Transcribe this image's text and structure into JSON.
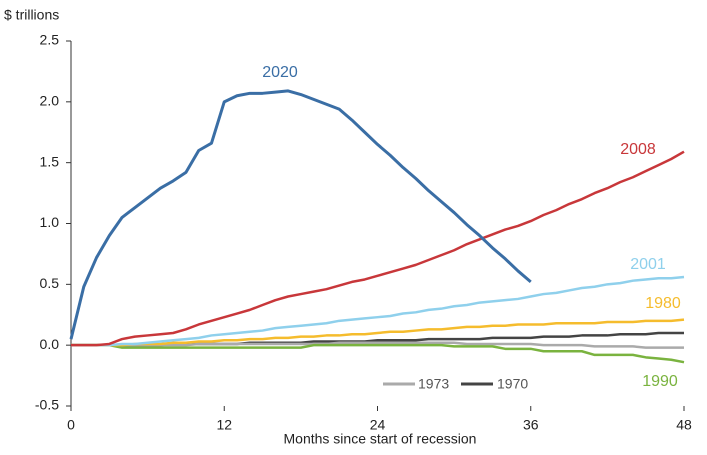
{
  "chart_data": {
    "type": "line",
    "y_label": "$ trillions",
    "x_label": "Months since start of recession",
    "x": [
      0,
      1,
      2,
      3,
      4,
      5,
      6,
      7,
      8,
      9,
      10,
      11,
      12,
      13,
      14,
      15,
      16,
      17,
      18,
      19,
      20,
      21,
      22,
      23,
      24,
      25,
      26,
      27,
      28,
      29,
      30,
      31,
      32,
      33,
      34,
      35,
      36,
      37,
      38,
      39,
      40,
      41,
      42,
      43,
      44,
      45,
      46,
      47,
      48
    ],
    "xlim": [
      0,
      48
    ],
    "xticks": [
      0,
      12,
      24,
      36,
      48
    ],
    "ylim": [
      -0.5,
      2.5
    ],
    "yticks": [
      -0.5,
      {
        "value": 0,
        "label": "0.0"
      },
      0.5,
      {
        "value": 1,
        "label": "1.0"
      },
      1.5,
      {
        "value": 2,
        "label": "2.0"
      },
      2.5
    ],
    "series": [
      {
        "name": "2020",
        "color": "#3a6ea5",
        "values": [
          0.05,
          0.48,
          0.72,
          0.9,
          1.05,
          1.13,
          1.21,
          1.29,
          1.35,
          1.42,
          1.6,
          1.66,
          2.0,
          2.05,
          2.07,
          2.07,
          2.08,
          2.09,
          2.06,
          2.02,
          1.98,
          1.94,
          1.85,
          1.75,
          1.65,
          1.56,
          1.46,
          1.37,
          1.27,
          1.18,
          1.09,
          0.99,
          0.9,
          0.8,
          0.71,
          0.61,
          0.52,
          null,
          null,
          null,
          null,
          null,
          null,
          null,
          null,
          null,
          null,
          null,
          null
        ]
      },
      {
        "name": "2008",
        "color": "#c8373a",
        "values": [
          0,
          0,
          0,
          0.01,
          0.05,
          0.07,
          0.08,
          0.09,
          0.1,
          0.13,
          0.17,
          0.2,
          0.23,
          0.26,
          0.29,
          0.33,
          0.37,
          0.4,
          0.42,
          0.44,
          0.46,
          0.49,
          0.52,
          0.54,
          0.57,
          0.6,
          0.63,
          0.66,
          0.7,
          0.74,
          0.78,
          0.83,
          0.87,
          0.91,
          0.95,
          0.98,
          1.02,
          1.07,
          1.11,
          1.16,
          1.2,
          1.25,
          1.29,
          1.34,
          1.38,
          1.43,
          1.48,
          1.53,
          1.59
        ]
      },
      {
        "name": "2001",
        "color": "#8fd0ec",
        "values": [
          0,
          0,
          0,
          0,
          0.01,
          0.01,
          0.02,
          0.03,
          0.04,
          0.05,
          0.06,
          0.08,
          0.09,
          0.1,
          0.11,
          0.12,
          0.14,
          0.15,
          0.16,
          0.17,
          0.18,
          0.2,
          0.21,
          0.22,
          0.23,
          0.24,
          0.26,
          0.27,
          0.29,
          0.3,
          0.32,
          0.33,
          0.35,
          0.36,
          0.37,
          0.38,
          0.4,
          0.42,
          0.43,
          0.45,
          0.47,
          0.48,
          0.5,
          0.51,
          0.53,
          0.54,
          0.55,
          0.55,
          0.56
        ]
      },
      {
        "name": "1980",
        "color": "#f5bc2d",
        "values": [
          0,
          0,
          0,
          0,
          0,
          0.01,
          0.01,
          0.01,
          0.02,
          0.02,
          0.03,
          0.03,
          0.04,
          0.04,
          0.05,
          0.05,
          0.06,
          0.06,
          0.07,
          0.07,
          0.08,
          0.08,
          0.09,
          0.09,
          0.1,
          0.11,
          0.11,
          0.12,
          0.13,
          0.13,
          0.14,
          0.15,
          0.15,
          0.16,
          0.16,
          0.17,
          0.17,
          0.17,
          0.18,
          0.18,
          0.18,
          0.18,
          0.19,
          0.19,
          0.19,
          0.2,
          0.2,
          0.2,
          0.21
        ]
      },
      {
        "name": "1990",
        "color": "#7ab33f",
        "values": [
          0,
          0,
          0,
          0,
          -0.02,
          -0.02,
          -0.02,
          -0.02,
          -0.02,
          -0.02,
          -0.02,
          -0.02,
          -0.02,
          -0.02,
          -0.02,
          -0.02,
          -0.02,
          -0.02,
          -0.02,
          0,
          0,
          0,
          0,
          0,
          0,
          0,
          0,
          0,
          0,
          0,
          -0.01,
          -0.01,
          -0.01,
          -0.01,
          -0.03,
          -0.03,
          -0.03,
          -0.05,
          -0.05,
          -0.05,
          -0.05,
          -0.08,
          -0.08,
          -0.08,
          -0.08,
          -0.1,
          -0.11,
          -0.12,
          -0.14
        ]
      },
      {
        "name": "1973",
        "color": "#aaaaaa",
        "values": [
          0,
          0,
          0,
          0,
          0,
          0,
          0,
          0,
          0,
          0,
          0.01,
          0.01,
          0.01,
          0.01,
          0.01,
          0.01,
          0.01,
          0.01,
          0.01,
          0.01,
          0.01,
          0.02,
          0.02,
          0.02,
          0.02,
          0.02,
          0.02,
          0.02,
          0.02,
          0.02,
          0.02,
          0.01,
          0.01,
          0.01,
          0.01,
          0.01,
          0.01,
          0,
          0,
          0,
          0,
          -0.01,
          -0.01,
          -0.01,
          -0.01,
          -0.02,
          -0.02,
          -0.02,
          -0.02
        ]
      },
      {
        "name": "1970",
        "color": "#444444",
        "values": [
          0,
          0,
          0,
          0,
          0,
          0,
          0,
          0,
          0.01,
          0.01,
          0.01,
          0.01,
          0.01,
          0.01,
          0.02,
          0.02,
          0.02,
          0.02,
          0.02,
          0.03,
          0.03,
          0.03,
          0.03,
          0.03,
          0.04,
          0.04,
          0.04,
          0.04,
          0.05,
          0.05,
          0.05,
          0.05,
          0.05,
          0.06,
          0.06,
          0.06,
          0.06,
          0.07,
          0.07,
          0.07,
          0.08,
          0.08,
          0.08,
          0.09,
          0.09,
          0.09,
          0.1,
          0.1,
          0.1
        ]
      }
    ]
  }
}
